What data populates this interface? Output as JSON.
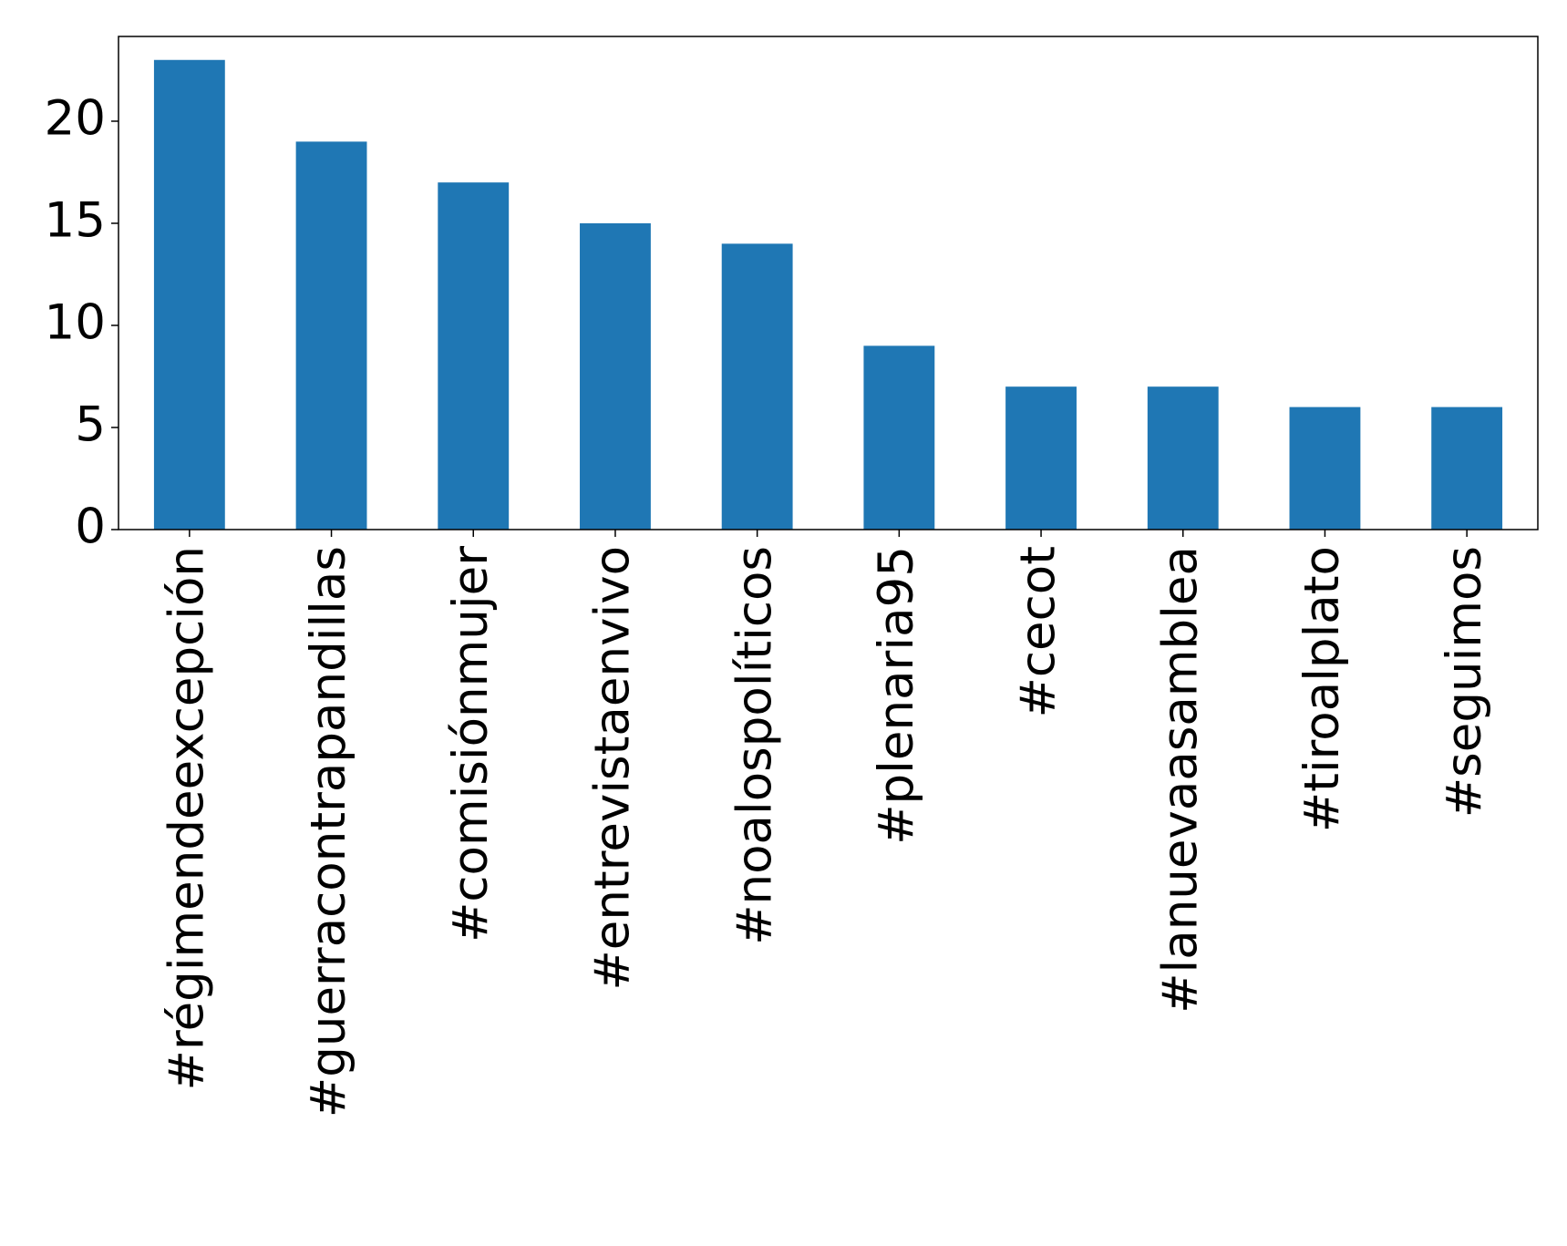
{
  "chart_data": {
    "type": "bar",
    "categories": [
      "#régimendeexcepción",
      "#guerracontrapandillas",
      "#comisiónmujer",
      "#entrevistaenvivo",
      "#noalospolíticos",
      "#plenaria95",
      "#cecot",
      "#lanuevaasamblea",
      "#tiroalplato",
      "#seguimos"
    ],
    "values": [
      23,
      19,
      17,
      15,
      14,
      9,
      7,
      7,
      6,
      6
    ],
    "color": "#1f77b4",
    "ylim": [
      0,
      24.15
    ],
    "yticks": [
      0,
      5,
      10,
      15,
      20
    ],
    "grid": false
  }
}
